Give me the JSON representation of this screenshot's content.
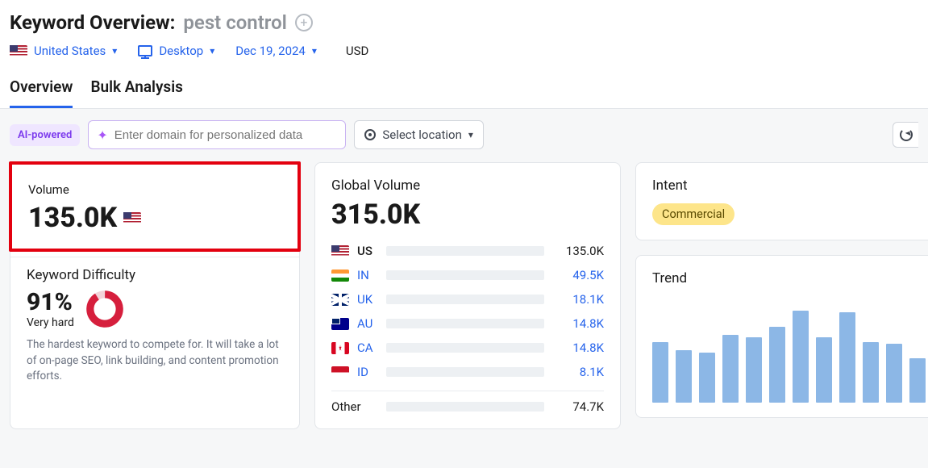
{
  "header": {
    "title_label": "Keyword Overview:",
    "keyword": "pest control",
    "filters": {
      "country": "United States",
      "device": "Desktop",
      "date": "Dec 19, 2024",
      "currency": "USD"
    }
  },
  "tabs": {
    "overview": "Overview",
    "bulk": "Bulk Analysis",
    "active": "overview"
  },
  "toolbar": {
    "ai_tag": "AI-powered",
    "domain_placeholder": "Enter domain for personalized data",
    "location_placeholder": "Select location"
  },
  "volume_card": {
    "label": "Volume",
    "value": "135.0K",
    "flag": "us",
    "highlight_color": "#e3000f"
  },
  "kd_card": {
    "label": "Keyword Difficulty",
    "percent": "91%",
    "level": "Very hard",
    "description": "The hardest keyword to compete for. It will take a lot of on-page SEO, link building, and content promotion efforts.",
    "donut_pct": 91,
    "donut_color": "#d61f3d",
    "donut_track": "#f3d3d9"
  },
  "global_volume": {
    "label": "Global Volume",
    "total": "315.0K",
    "max_bar_value": 135.0,
    "rows": [
      {
        "flag": "us",
        "code": "US",
        "value_label": "135.0K",
        "value": 135.0,
        "primary": true
      },
      {
        "flag": "in",
        "code": "IN",
        "value_label": "49.5K",
        "value": 49.5
      },
      {
        "flag": "uk",
        "code": "UK",
        "value_label": "18.1K",
        "value": 18.1
      },
      {
        "flag": "au",
        "code": "AU",
        "value_label": "14.8K",
        "value": 14.8
      },
      {
        "flag": "ca",
        "code": "CA",
        "value_label": "14.8K",
        "value": 14.8
      },
      {
        "flag": "id",
        "code": "ID",
        "value_label": "8.1K",
        "value": 8.1
      }
    ],
    "other": {
      "label": "Other",
      "value_label": "74.7K",
      "value": 74.7,
      "bar_pct": 23
    },
    "bar_color": "#2f7bd6",
    "bar_track": "#edf0f3"
  },
  "intent_card": {
    "label": "Intent",
    "value": "Commercial",
    "pill_bg": "#fde58a",
    "pill_fg": "#5a4a00"
  },
  "trend_card": {
    "label": "Trend",
    "bar_color": "#8cb7e6",
    "values": [
      58,
      50,
      48,
      65,
      62,
      72,
      88,
      62,
      86,
      58,
      56,
      42
    ],
    "max": 100
  }
}
